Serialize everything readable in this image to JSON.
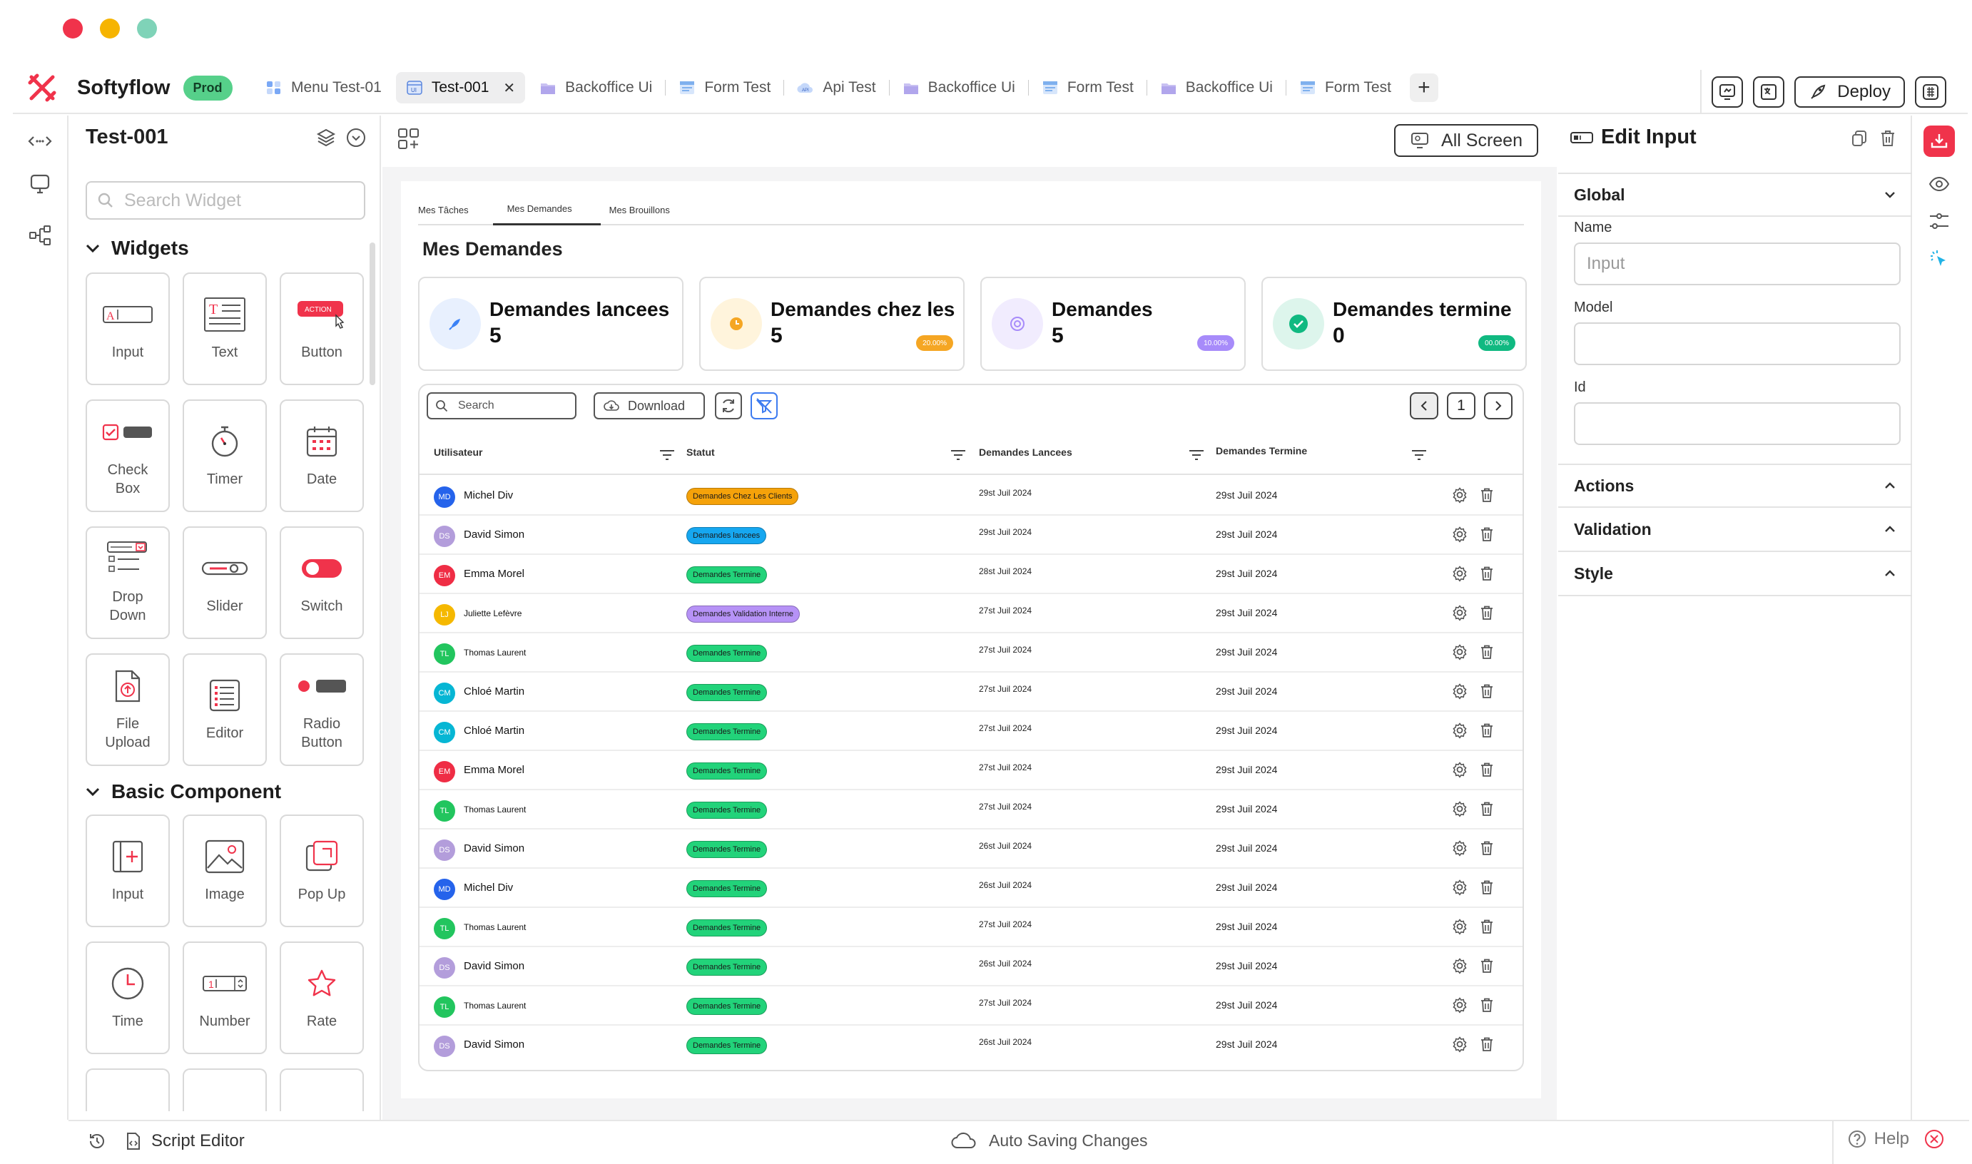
{
  "app": {
    "name": "Softyflow",
    "env_badge": "Prod",
    "deploy_label": "Deploy"
  },
  "tabs": [
    {
      "label": "Menu Test-01",
      "icon": "menu-icon"
    },
    {
      "label": "Test-001",
      "icon": "ui-page-icon",
      "active": true
    },
    {
      "label": "Backoffice Ui",
      "icon": "folder-icon"
    },
    {
      "label": "Form Test",
      "icon": "form-icon"
    },
    {
      "label": "Api Test",
      "icon": "api-cloud-icon"
    },
    {
      "label": "Backoffice Ui",
      "icon": "folder-icon"
    },
    {
      "label": "Form Test",
      "icon": "form-icon"
    },
    {
      "label": "Backoffice Ui",
      "icon": "folder-icon"
    },
    {
      "label": "Form Test",
      "icon": "form-icon"
    }
  ],
  "left_panel": {
    "title": "Test-001",
    "search_placeholder": "Search Widget",
    "widgets_title": "Widgets",
    "widgets": [
      {
        "label": "Input"
      },
      {
        "label": "Text"
      },
      {
        "label": "Button",
        "icon_text": "ACTION"
      },
      {
        "label": "Check Box"
      },
      {
        "label": "Timer"
      },
      {
        "label": "Date"
      },
      {
        "label": "Drop Down"
      },
      {
        "label": "Slider"
      },
      {
        "label": "Switch"
      },
      {
        "label": "File Upload"
      },
      {
        "label": "Editor"
      },
      {
        "label": "Radio Button"
      }
    ],
    "basic_title": "Basic Component",
    "basic": [
      {
        "label": "Input"
      },
      {
        "label": "Image"
      },
      {
        "label": "Pop Up"
      },
      {
        "label": "Time"
      },
      {
        "label": "Number"
      },
      {
        "label": "Rate"
      }
    ]
  },
  "canvas": {
    "all_screen_label": "All Screen",
    "page_tabs": [
      "Mes Tâches",
      "Mes Demandes",
      "Mes Brouillons"
    ],
    "active_page_tab": "Mes Demandes",
    "page_title": "Mes Demandes",
    "kpis": [
      {
        "title": "Demandes lancees",
        "value": "5",
        "badge": "",
        "color": "#3b82f6"
      },
      {
        "title": "Demandes chez les",
        "value": "5",
        "badge": "20.00%",
        "color": "#f5a623"
      },
      {
        "title": "Demandes",
        "value": "5",
        "badge": "10.00%",
        "color": "#a78bfa"
      },
      {
        "title": "Demandes termine",
        "value": "0",
        "badge": "00.00%",
        "color": "#10b981"
      }
    ],
    "table": {
      "search_placeholder": "Search",
      "download_label": "Download",
      "page_number": "1",
      "columns": [
        "Utilisateur",
        "Statut",
        "Demandes Lancees",
        "Demandes Termine"
      ],
      "rows": [
        {
          "initials": "MD",
          "name": "Michel Div",
          "status": "Demandes Chez Les Clients",
          "status_color": "#f5a20a",
          "launched": "29st Juil 2024",
          "done": "29st Juil 2024",
          "avatar_color": "#2563eb"
        },
        {
          "initials": "DS",
          "name": "David Simon",
          "status": "Demandes lancees",
          "status_color": "#16a7f0",
          "launched": "29st Juil 2024",
          "done": "29st Juil 2024",
          "avatar_color": "#b39ddb"
        },
        {
          "initials": "EM",
          "name": "Emma Morel",
          "status": "Demandes Termine",
          "status_color": "#22d37a",
          "launched": "28st Juil 2024",
          "done": "29st Juil 2024",
          "avatar_color": "#ef2d45"
        },
        {
          "initials": "LJ",
          "name": "Juliette Lefèvre",
          "status": "Demandes Validation Interne",
          "status_color": "#b692f6",
          "launched": "27st Juil 2024",
          "done": "29st Juil 2024",
          "avatar_color": "#f5b800",
          "small": true
        },
        {
          "initials": "TL",
          "name": "Thomas Laurent",
          "status": "Demandes Termine",
          "status_color": "#22d37a",
          "launched": "27st Juil 2024",
          "done": "29st Juil 2024",
          "avatar_color": "#22c55e",
          "small": true
        },
        {
          "initials": "CM",
          "name": "Chloé Martin",
          "status": "Demandes Termine",
          "status_color": "#22d37a",
          "launched": "27st Juil 2024",
          "done": "29st Juil 2024",
          "avatar_color": "#06b6d4"
        },
        {
          "initials": "CM",
          "name": "Chloé Martin",
          "status": "Demandes Termine",
          "status_color": "#22d37a",
          "launched": "27st Juil 2024",
          "done": "29st Juil 2024",
          "avatar_color": "#06b6d4"
        },
        {
          "initials": "EM",
          "name": "Emma Morel",
          "status": "Demandes Termine",
          "status_color": "#22d37a",
          "launched": "27st Juil 2024",
          "done": "29st Juil 2024",
          "avatar_color": "#ef2d45"
        },
        {
          "initials": "TL",
          "name": "Thomas Laurent",
          "status": "Demandes Termine",
          "status_color": "#22d37a",
          "launched": "27st Juil 2024",
          "done": "29st Juil 2024",
          "avatar_color": "#22c55e",
          "small": true
        },
        {
          "initials": "DS",
          "name": "David Simon",
          "status": "Demandes Termine",
          "status_color": "#22d37a",
          "launched": "26st Juil 2024",
          "done": "29st Juil 2024",
          "avatar_color": "#b39ddb"
        },
        {
          "initials": "MD",
          "name": "Michel Div",
          "status": "Demandes Termine",
          "status_color": "#22d37a",
          "launched": "26st Juil 2024",
          "done": "29st Juil 2024",
          "avatar_color": "#2563eb"
        },
        {
          "initials": "TL",
          "name": "Thomas Laurent",
          "status": "Demandes Termine",
          "status_color": "#22d37a",
          "launched": "27st Juil 2024",
          "done": "29st Juil 2024",
          "avatar_color": "#22c55e",
          "small": true
        },
        {
          "initials": "DS",
          "name": "David Simon",
          "status": "Demandes Termine",
          "status_color": "#22d37a",
          "launched": "26st Juil 2024",
          "done": "29st Juil 2024",
          "avatar_color": "#b39ddb"
        },
        {
          "initials": "TL",
          "name": "Thomas Laurent",
          "status": "Demandes Termine",
          "status_color": "#22d37a",
          "launched": "27st Juil 2024",
          "done": "29st Juil 2024",
          "avatar_color": "#22c55e",
          "small": true
        },
        {
          "initials": "DS",
          "name": "David Simon",
          "status": "Demandes Termine",
          "status_color": "#22d37a",
          "launched": "26st Juil 2024",
          "done": "29st Juil 2024",
          "avatar_color": "#b39ddb"
        }
      ]
    }
  },
  "right_panel": {
    "title": "Edit Input",
    "global_label": "Global",
    "name_label": "Name",
    "name_placeholder": "Input",
    "model_label": "Model",
    "id_label": "Id",
    "actions_label": "Actions",
    "validation_label": "Validation",
    "style_label": "Style"
  },
  "status_bar": {
    "script_editor": "Script Editor",
    "auto_saving": "Auto Saving Changes",
    "help": "Help"
  },
  "colors": {
    "accent": "#f0334b",
    "prod_badge": "#56d08a",
    "window_close": "#f0334b",
    "window_min": "#f6b400",
    "window_max": "#7fd3b8"
  }
}
